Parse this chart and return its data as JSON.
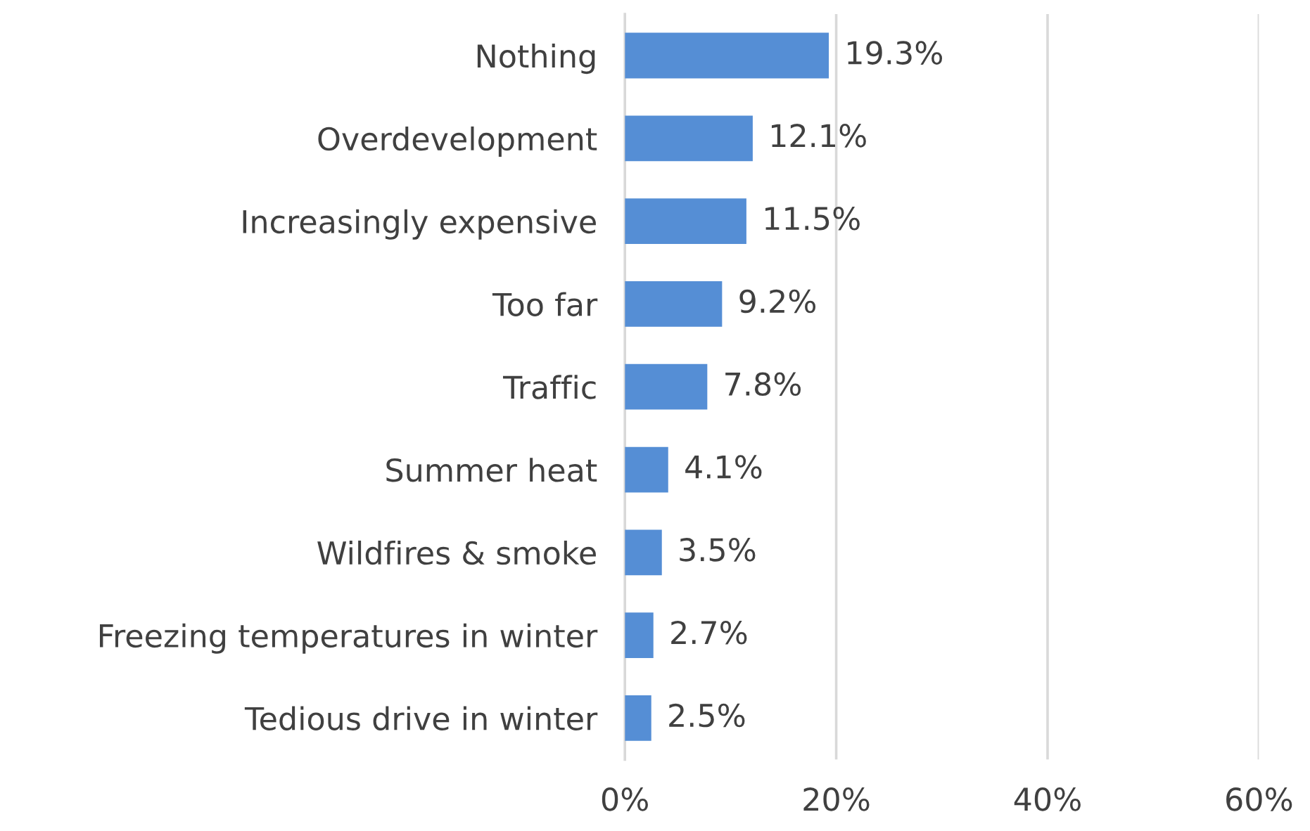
{
  "chart_data": {
    "type": "bar",
    "orientation": "horizontal",
    "categories": [
      "Nothing",
      "Overdevelopment",
      "Increasingly expensive",
      "Too far",
      "Traffic",
      "Summer heat",
      "Wildfires & smoke",
      "Freezing temperatures in winter",
      "Tedious drive in winter"
    ],
    "values": [
      19.3,
      12.1,
      11.5,
      9.2,
      7.8,
      4.1,
      3.5,
      2.7,
      2.5
    ],
    "value_labels": [
      "19.3%",
      "12.1%",
      "11.5%",
      "9.2%",
      "7.8%",
      "4.1%",
      "3.5%",
      "2.7%",
      "2.5%"
    ],
    "color": "#558ed5",
    "xlim": [
      0,
      60
    ],
    "xticks": [
      {
        "value": 0,
        "label": "0%"
      },
      {
        "value": 20,
        "label": "20%"
      },
      {
        "value": 40,
        "label": "40%"
      },
      {
        "value": 60,
        "label": "60%"
      }
    ],
    "grid": "x"
  }
}
